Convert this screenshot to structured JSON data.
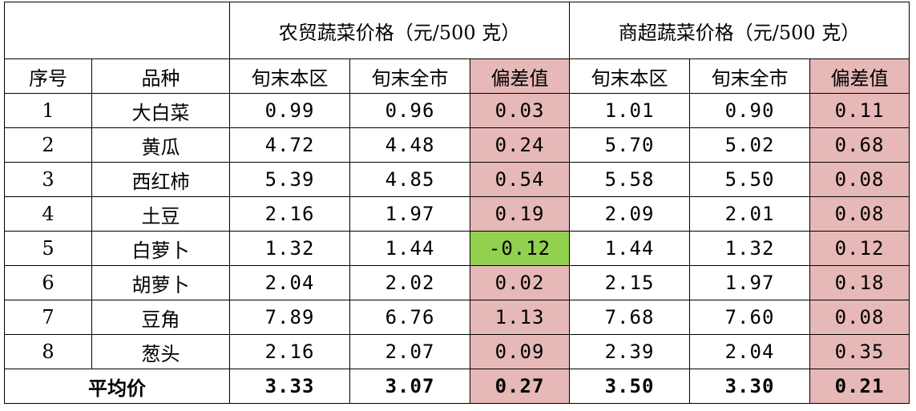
{
  "header": {
    "group_farm": "农贸蔬菜价格（元/500 克）",
    "group_super": "商超蔬菜价格（元/500 克）",
    "col_no": "序号",
    "col_variety": "品种",
    "col_district": "旬末本区",
    "col_city": "旬末全市",
    "col_diff": "偏差值"
  },
  "rows": [
    {
      "no": "1",
      "variety": "大白菜",
      "farm_district": "0.99",
      "farm_city": "0.96",
      "farm_diff": "0.03",
      "farm_status": "positive",
      "super_district": "1.01",
      "super_city": "0.90",
      "super_diff": "0.11",
      "super_status": "positive"
    },
    {
      "no": "2",
      "variety": "黄瓜",
      "farm_district": "4.72",
      "farm_city": "4.48",
      "farm_diff": "0.24",
      "farm_status": "positive",
      "super_district": "5.70",
      "super_city": "5.02",
      "super_diff": "0.68",
      "super_status": "positive"
    },
    {
      "no": "3",
      "variety": "西红柿",
      "farm_district": "5.39",
      "farm_city": "4.85",
      "farm_diff": "0.54",
      "farm_status": "positive",
      "super_district": "5.58",
      "super_city": "5.50",
      "super_diff": "0.08",
      "super_status": "positive"
    },
    {
      "no": "4",
      "variety": "土豆",
      "farm_district": "2.16",
      "farm_city": "1.97",
      "farm_diff": "0.19",
      "farm_status": "positive",
      "super_district": "2.09",
      "super_city": "2.01",
      "super_diff": "0.08",
      "super_status": "positive"
    },
    {
      "no": "5",
      "variety": "白萝卜",
      "farm_district": "1.32",
      "farm_city": "1.44",
      "farm_diff": "-0.12",
      "farm_status": "negative",
      "super_district": "1.44",
      "super_city": "1.32",
      "super_diff": "0.12",
      "super_status": "positive"
    },
    {
      "no": "6",
      "variety": "胡萝卜",
      "farm_district": "2.04",
      "farm_city": "2.02",
      "farm_diff": "0.02",
      "farm_status": "positive",
      "super_district": "2.15",
      "super_city": "1.97",
      "super_diff": "0.18",
      "super_status": "positive"
    },
    {
      "no": "7",
      "variety": "豆角",
      "farm_district": "7.89",
      "farm_city": "6.76",
      "farm_diff": "1.13",
      "farm_status": "positive",
      "super_district": "7.68",
      "super_city": "7.60",
      "super_diff": "0.08",
      "super_status": "positive"
    },
    {
      "no": "8",
      "variety": "葱头",
      "farm_district": "2.16",
      "farm_city": "2.07",
      "farm_diff": "0.09",
      "farm_status": "positive",
      "super_district": "2.39",
      "super_city": "2.04",
      "super_diff": "0.35",
      "super_status": "positive"
    }
  ],
  "average": {
    "label": "平均价",
    "farm_district": "3.33",
    "farm_city": "3.07",
    "farm_diff": "0.27",
    "super_district": "3.50",
    "super_city": "3.30",
    "super_diff": "0.21"
  },
  "colors": {
    "positive_fill": "#e6b8b7",
    "negative_fill": "#92d050",
    "border": "#000000"
  }
}
